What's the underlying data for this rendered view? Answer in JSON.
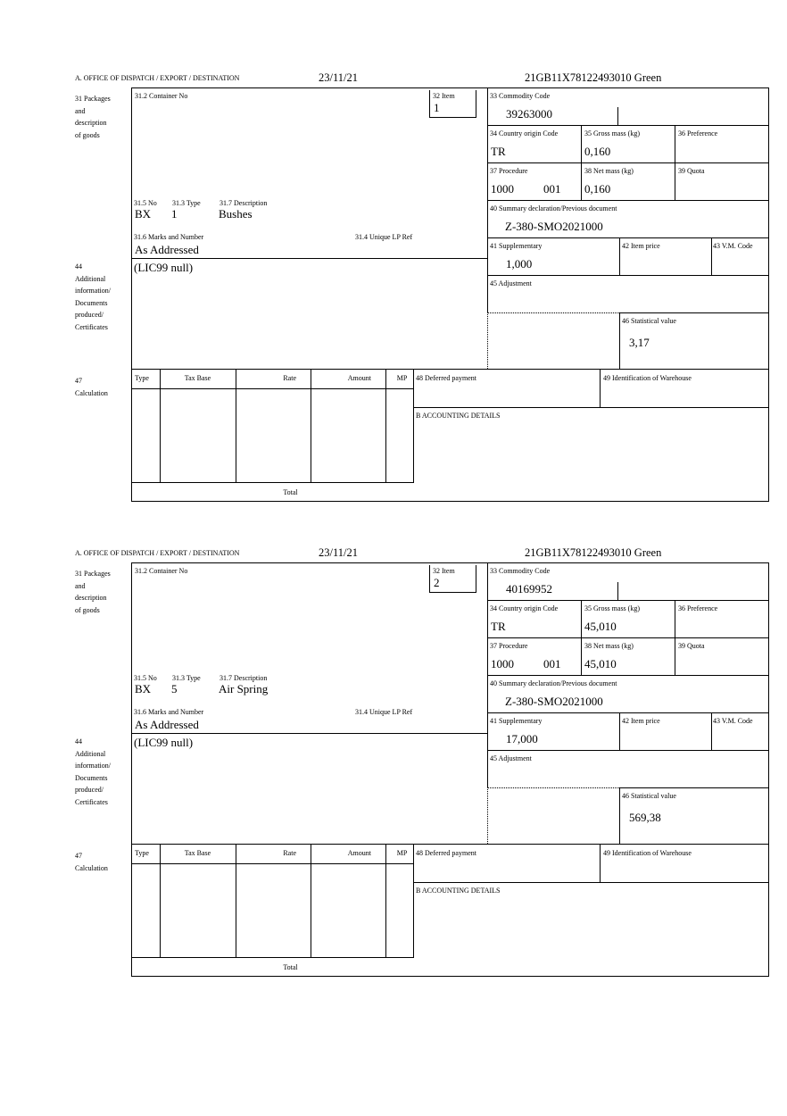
{
  "labels": {
    "office": "A.  OFFICE OF DISPATCH / EXPORT / DESTINATION",
    "packages": "31 Packages\nand\ndescription\nof goods",
    "container_no": "31.2 Container No",
    "item": "32 Item",
    "commodity_code": "33 Commodity Code",
    "country_origin": "34 Country origin Code",
    "gross_mass": "35 Gross mass (kg)",
    "preference": "36 Preference",
    "procedure": "37 Procedure",
    "net_mass": "38 Net mass (kg)",
    "quota": "39 Quota",
    "summary_declaration": "40 Summary declaration/Previous document",
    "supplementary": "41 Supplementary",
    "item_price": "42 Item price",
    "vm_code": "43 V.M. Code",
    "adjustment": "45 Adjustment",
    "statistical_value": "46 Statistical value",
    "pkg_no": "31.5 No",
    "pkg_type": "31.3 Type",
    "pkg_description": "31.7 Description",
    "marks_numbers": "31.6 Marks and Number",
    "unique_lp_ref": "31.4 Unique LP Ref",
    "additional_info": "44\nAdditional\ninformation/\nDocuments\nproduced/\nCertificates",
    "calculation": "47\nCalculation",
    "calc_columns": [
      "Type",
      "Tax Base",
      "Rate",
      "Amount",
      "MP"
    ],
    "total": "Total",
    "deferred_payment": "48 Deferred payment",
    "warehouse": "49 Identification of Warehouse",
    "accounting": "B ACCOUNTING DETAILS"
  },
  "forms": [
    {
      "date": "23/11/21",
      "reference": "21GB11X78122493010    Green",
      "item": "1",
      "commodity_code": "39263000",
      "country_origin": "TR",
      "gross_mass": "0,160",
      "procedure": "1000",
      "procedure_code": "001",
      "net_mass": "0,160",
      "summary_declaration": "Z-380-SMO2021000",
      "supplementary": "1,000",
      "statistical_value": "3,17",
      "pkg_no": "BX",
      "pkg_type": "1",
      "pkg_description": "Bushes",
      "marks_numbers": "As Addressed",
      "additional_info": "(LIC99 null)"
    },
    {
      "date": "23/11/21",
      "reference": "21GB11X78122493010    Green",
      "item": "2",
      "commodity_code": "40169952",
      "country_origin": "TR",
      "gross_mass": "45,010",
      "procedure": "1000",
      "procedure_code": "001",
      "net_mass": "45,010",
      "summary_declaration": "Z-380-SMO2021000",
      "supplementary": "17,000",
      "statistical_value": "569,38",
      "pkg_no": "BX",
      "pkg_type": "5",
      "pkg_description": "Air Spring",
      "marks_numbers": "As Addressed",
      "additional_info": "(LIC99 null)"
    }
  ]
}
